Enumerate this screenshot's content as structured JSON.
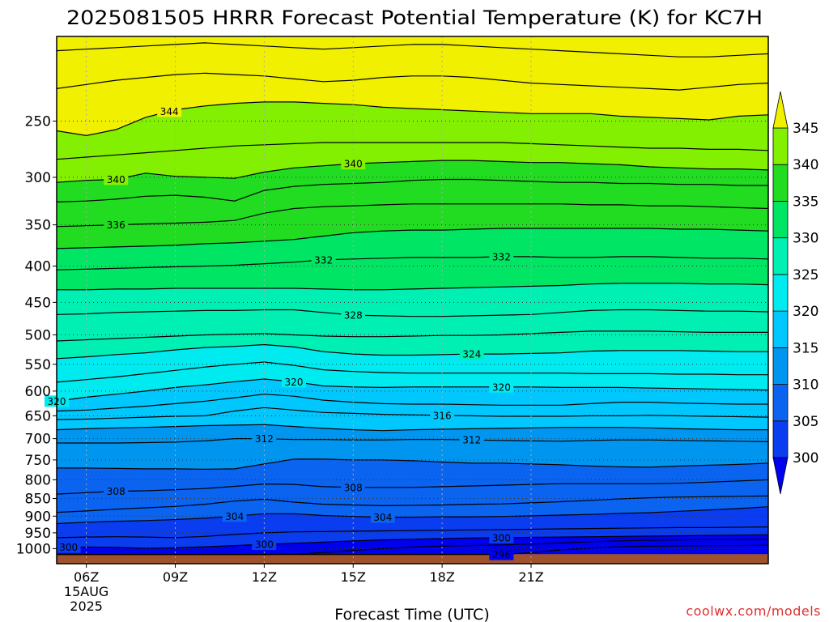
{
  "chart_data": {
    "type": "heatmap",
    "title": "2025081505 HRRR Forecast Potential Temperature (K) for KC7H",
    "xlabel": "Forecast Time (UTC)",
    "ylabel": "",
    "watermark": "coolwx.com/models",
    "x_axis": {
      "units": "hours since 2025-08-15 06Z",
      "range": [
        -1,
        23
      ],
      "ticks": [
        {
          "value": 0,
          "label": "06Z",
          "sublabels": [
            "15AUG",
            "2025"
          ]
        },
        {
          "value": 3,
          "label": "09Z"
        },
        {
          "value": 6,
          "label": "12Z"
        },
        {
          "value": 9,
          "label": "15Z"
        },
        {
          "value": 12,
          "label": "18Z"
        },
        {
          "value": 15,
          "label": "21Z"
        }
      ]
    },
    "y_axis": {
      "units": "hPa",
      "scale": "log",
      "inverted": true,
      "range": [
        1050,
        190
      ],
      "ticks": [
        250,
        300,
        350,
        400,
        450,
        500,
        550,
        600,
        650,
        700,
        750,
        800,
        850,
        900,
        950,
        1000
      ]
    },
    "colorbar": {
      "levels": [
        300,
        305,
        310,
        315,
        320,
        325,
        330,
        335,
        340,
        345
      ],
      "tick_labels": [
        "300",
        "305",
        "310",
        "315",
        "320",
        "325",
        "330",
        "335",
        "340",
        "345"
      ],
      "colors": [
        "#0000f0",
        "#0a3cf0",
        "#0a64f0",
        "#0096f0",
        "#00c8ff",
        "#00ebf0",
        "#00f0b4",
        "#00e664",
        "#22dc22",
        "#82f000",
        "#c8ff00",
        "#f0f000"
      ],
      "extend": "both"
    },
    "surface": {
      "color": "#a0522d",
      "pressure_hpa": 1018
    },
    "contour_interval_k": 2,
    "isentropes": [
      {
        "theta": 296,
        "p": [
          1019,
          1019,
          1019,
          1019,
          1019,
          1019,
          1019,
          1019,
          1019,
          1019,
          1019,
          1019,
          1019,
          1019,
          1019,
          1019,
          1013,
          1004,
          998,
          994,
          992,
          991,
          990,
          990,
          989
        ]
      },
      {
        "theta": 298,
        "p": [
          1019,
          1019,
          1019,
          1019,
          1019,
          1019,
          1019,
          1019,
          1018,
          1013,
          1006,
          1000,
          995,
          992,
          990,
          988,
          985,
          982,
          978,
          975,
          973,
          972,
          971,
          971,
          970
        ]
      },
      {
        "theta": 300,
        "p": [
          996,
          995,
          996,
          999,
          997,
          994,
          990,
          986,
          983,
          979,
          975,
          972,
          970,
          968,
          966,
          965,
          964,
          963,
          962,
          961,
          960,
          959,
          958,
          957,
          956
        ]
      },
      {
        "theta": 302,
        "p": [
          965,
          963,
          962,
          963,
          965,
          961,
          955,
          950,
          947,
          946,
          945,
          944,
          943,
          942,
          941,
          940,
          939,
          938,
          937,
          936,
          935,
          934,
          934,
          933,
          932
        ]
      },
      {
        "theta": 304,
        "p": [
          922,
          918,
          915,
          913,
          910,
          906,
          900,
          893,
          893,
          898,
          901,
          903,
          903,
          902,
          902,
          901,
          899,
          897,
          895,
          892,
          890,
          886,
          882,
          878,
          873
        ]
      },
      {
        "theta": 306,
        "p": [
          889,
          885,
          880,
          876,
          872,
          866,
          857,
          852,
          860,
          866,
          868,
          870,
          869,
          868,
          866,
          865,
          862,
          859,
          855,
          851,
          848,
          846,
          845,
          844,
          843
        ]
      },
      {
        "theta": 308,
        "p": [
          838,
          834,
          830,
          829,
          826,
          823,
          817,
          811,
          812,
          818,
          820,
          820,
          820,
          818,
          816,
          814,
          812,
          810,
          810,
          810,
          810,
          809,
          806,
          803,
          800
        ]
      },
      {
        "theta": 310,
        "p": [
          770,
          770,
          771,
          772,
          772,
          773,
          772,
          760,
          748,
          748,
          750,
          750,
          752,
          755,
          758,
          758,
          760,
          762,
          765,
          767,
          768,
          765,
          763,
          761,
          758
        ]
      },
      {
        "theta": 312,
        "p": [
          710,
          710,
          710,
          709,
          708,
          705,
          700,
          700,
          702,
          702,
          703,
          703,
          702,
          702,
          703,
          704,
          705,
          706,
          704,
          703,
          703,
          704,
          705,
          706,
          707
        ]
      },
      {
        "theta": 314,
        "p": [
          680,
          678,
          676,
          675,
          673,
          671,
          670,
          669,
          673,
          677,
          680,
          682,
          680,
          679,
          678,
          677,
          676,
          675,
          675,
          675,
          676,
          678,
          679,
          680,
          680
        ]
      },
      {
        "theta": 316,
        "p": [
          658,
          657,
          655,
          653,
          651,
          650,
          640,
          633,
          638,
          643,
          645,
          647,
          648,
          649,
          650,
          651,
          651,
          651,
          650,
          650,
          649,
          650,
          651,
          652,
          653
        ]
      },
      {
        "theta": 318,
        "p": [
          640,
          638,
          634,
          630,
          625,
          620,
          613,
          606,
          610,
          618,
          622,
          625,
          626,
          626,
          627,
          628,
          628,
          628,
          625,
          622,
          622,
          624,
          625,
          626,
          626
        ]
      },
      {
        "theta": 320,
        "p": [
          620,
          612,
          606,
          600,
          593,
          588,
          582,
          577,
          582,
          590,
          592,
          593,
          592,
          592,
          592,
          592,
          592,
          593,
          593,
          593,
          594,
          595,
          596,
          597,
          598
        ]
      },
      {
        "theta": 322,
        "p": [
          583,
          578,
          573,
          567,
          561,
          555,
          550,
          546,
          552,
          560,
          563,
          565,
          566,
          566,
          566,
          566,
          566,
          566,
          567,
          567,
          567,
          568,
          568,
          569,
          569
        ]
      },
      {
        "theta": 324,
        "p": [
          540,
          537,
          533,
          530,
          525,
          521,
          519,
          516,
          520,
          528,
          532,
          534,
          534,
          533,
          532,
          532,
          531,
          530,
          527,
          526,
          526,
          526,
          527,
          528,
          528
        ]
      },
      {
        "theta": 326,
        "p": [
          510,
          508,
          506,
          504,
          502,
          500,
          499,
          498,
          500,
          502,
          503,
          503,
          502,
          501,
          501,
          500,
          498,
          496,
          494,
          494,
          494,
          495,
          496,
          496,
          496
        ]
      },
      {
        "theta": 328,
        "p": [
          468,
          467,
          465,
          464,
          463,
          462,
          462,
          461,
          461,
          465,
          469,
          470,
          471,
          471,
          470,
          469,
          468,
          465,
          462,
          461,
          461,
          462,
          463,
          463,
          464
        ]
      },
      {
        "theta": 330,
        "p": [
          432,
          432,
          431,
          431,
          430,
          430,
          430,
          430,
          430,
          431,
          432,
          432,
          431,
          430,
          429,
          428,
          427,
          426,
          424,
          423,
          423,
          423,
          424,
          424,
          425
        ]
      },
      {
        "theta": 332,
        "p": [
          405,
          404,
          403,
          402,
          401,
          400,
          399,
          397,
          395,
          392,
          391,
          390,
          389,
          389,
          389,
          388,
          388,
          389,
          389,
          388,
          388,
          389,
          390,
          390,
          391
        ]
      },
      {
        "theta": 334,
        "p": [
          378,
          377,
          376,
          375,
          374,
          372,
          371,
          369,
          367,
          363,
          359,
          357,
          356,
          356,
          355,
          354,
          354,
          354,
          354,
          354,
          354,
          355,
          355,
          356,
          357
        ]
      },
      {
        "theta": 336,
        "p": [
          352,
          351,
          350,
          349,
          348,
          347,
          345,
          337,
          332,
          330,
          329,
          328,
          327,
          327,
          327,
          327,
          327,
          327,
          328,
          328,
          329,
          329,
          330,
          331,
          332
        ]
      },
      {
        "theta": 338,
        "p": [
          325,
          324,
          322,
          319,
          318,
          320,
          324,
          313,
          309,
          307,
          306,
          305,
          303,
          302,
          302,
          303,
          304,
          305,
          305,
          306,
          306,
          307,
          307,
          308,
          308
        ]
      },
      {
        "theta": 340,
        "p": [
          305,
          303,
          302,
          296,
          299,
          300,
          301,
          295,
          291,
          289,
          287,
          286,
          285,
          284,
          284,
          285,
          286,
          286,
          287,
          288,
          290,
          291,
          292,
          292,
          293
        ]
      },
      {
        "theta": 342,
        "p": [
          283,
          281,
          279,
          277,
          275,
          273,
          271,
          270,
          269,
          268,
          268,
          268,
          268,
          268,
          268,
          268,
          269,
          270,
          271,
          272,
          273,
          273,
          274,
          274,
          275
        ]
      },
      {
        "theta": 344,
        "p": [
          258,
          262,
          257,
          247,
          241,
          238,
          236,
          235,
          235,
          236,
          237,
          239,
          240,
          241,
          242,
          243,
          244,
          244,
          244,
          246,
          247,
          248,
          249,
          246,
          245
        ]
      },
      {
        "theta": 346,
        "p": [
          225,
          222,
          219,
          217,
          215,
          214,
          215,
          216,
          218,
          220,
          219,
          217,
          216,
          216,
          217,
          219,
          221,
          222,
          223,
          224,
          225,
          226,
          224,
          222,
          221
        ]
      },
      {
        "theta": 348,
        "p": [
          199,
          198,
          197,
          196,
          195,
          194,
          195,
          196,
          197,
          198,
          197,
          196,
          195,
          195,
          196,
          197,
          198,
          199,
          200,
          201,
          202,
          203,
          203,
          202,
          201
        ]
      }
    ],
    "contour_labels": [
      {
        "theta": 344,
        "x": 2.8,
        "text": "344"
      },
      {
        "theta": 340,
        "x": 1.0,
        "text": "340"
      },
      {
        "theta": 340,
        "x": 9.0,
        "text": "340"
      },
      {
        "theta": 336,
        "x": 1.0,
        "text": "336"
      },
      {
        "theta": 332,
        "x": 8.0,
        "text": "332"
      },
      {
        "theta": 332,
        "x": 14.0,
        "text": "332"
      },
      {
        "theta": 328,
        "x": 9.0,
        "text": "328"
      },
      {
        "theta": 324,
        "x": 13.0,
        "text": "324"
      },
      {
        "theta": 320,
        "x": -1.0,
        "text": "320"
      },
      {
        "theta": 320,
        "x": 7.0,
        "text": "320"
      },
      {
        "theta": 320,
        "x": 14.0,
        "text": "320"
      },
      {
        "theta": 316,
        "x": 12.0,
        "text": "316"
      },
      {
        "theta": 312,
        "x": 6.0,
        "text": "312"
      },
      {
        "theta": 312,
        "x": 13.0,
        "text": "312"
      },
      {
        "theta": 308,
        "x": 1.0,
        "text": "308"
      },
      {
        "theta": 308,
        "x": 9.0,
        "text": "308"
      },
      {
        "theta": 304,
        "x": 5.0,
        "text": "304"
      },
      {
        "theta": 304,
        "x": 10.0,
        "text": "304"
      },
      {
        "theta": 300,
        "x": -0.6,
        "text": "300"
      },
      {
        "theta": 300,
        "x": 6.0,
        "text": "300"
      },
      {
        "theta": 300,
        "x": 14.0,
        "text": "300"
      },
      {
        "theta": 296,
        "x": 14.0,
        "text": "296"
      }
    ]
  }
}
